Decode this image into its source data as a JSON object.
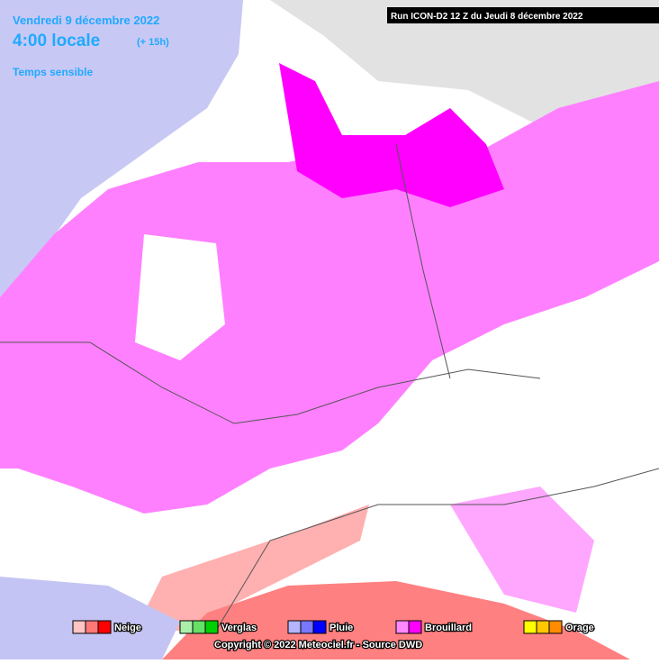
{
  "header": {
    "date": "Vendredi 9 décembre 2022",
    "time": "4:00 locale",
    "offset": "(+ 15h)",
    "subtitle": "Temps sensible"
  },
  "run": "Run ICON-D2 12 Z du Jeudi 8 décembre 2022",
  "legend": [
    {
      "label": "Neige",
      "colors": [
        "#ffc4c4",
        "#ff7878",
        "#ff0000"
      ]
    },
    {
      "label": "Verglas",
      "colors": [
        "#aaf0aa",
        "#66e066",
        "#00d000"
      ]
    },
    {
      "label": "Pluie",
      "colors": [
        "#b4b4ff",
        "#7878ff",
        "#0000ff"
      ]
    },
    {
      "label": "Brouillard",
      "colors": [
        "#ff88ff",
        "#ff00ff"
      ]
    },
    {
      "label": "Orage",
      "colors": [
        "#ffff00",
        "#ffc800",
        "#ff8c00"
      ]
    }
  ],
  "copyright": "Copyright © 2022 Meteociel.fr - Source DWD"
}
